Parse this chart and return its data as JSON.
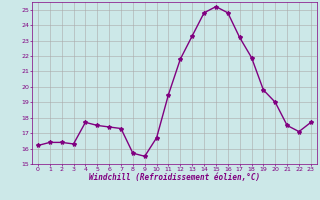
{
  "x": [
    0,
    1,
    2,
    3,
    4,
    5,
    6,
    7,
    8,
    9,
    10,
    11,
    12,
    13,
    14,
    15,
    16,
    17,
    18,
    19,
    20,
    21,
    22,
    23
  ],
  "y": [
    16.2,
    16.4,
    16.4,
    16.3,
    17.7,
    17.5,
    17.4,
    17.3,
    15.7,
    15.5,
    16.7,
    19.5,
    21.8,
    23.3,
    24.8,
    25.2,
    24.8,
    23.2,
    21.9,
    19.8,
    19.0,
    17.5,
    17.1,
    17.7
  ],
  "line_color": "#800080",
  "marker": "*",
  "marker_color": "#800080",
  "marker_size": 3,
  "xlim": [
    -0.5,
    23.5
  ],
  "ylim": [
    15,
    25.5
  ],
  "yticks": [
    15,
    16,
    17,
    18,
    19,
    20,
    21,
    22,
    23,
    24,
    25
  ],
  "xticks": [
    0,
    1,
    2,
    3,
    4,
    5,
    6,
    7,
    8,
    9,
    10,
    11,
    12,
    13,
    14,
    15,
    16,
    17,
    18,
    19,
    20,
    21,
    22,
    23
  ],
  "xlabel": "Windchill (Refroidissement éolien,°C)",
  "bg_color": "#cce8e8",
  "grid_color": "#aaaaaa",
  "text_color": "#800080",
  "line_width": 1.0
}
